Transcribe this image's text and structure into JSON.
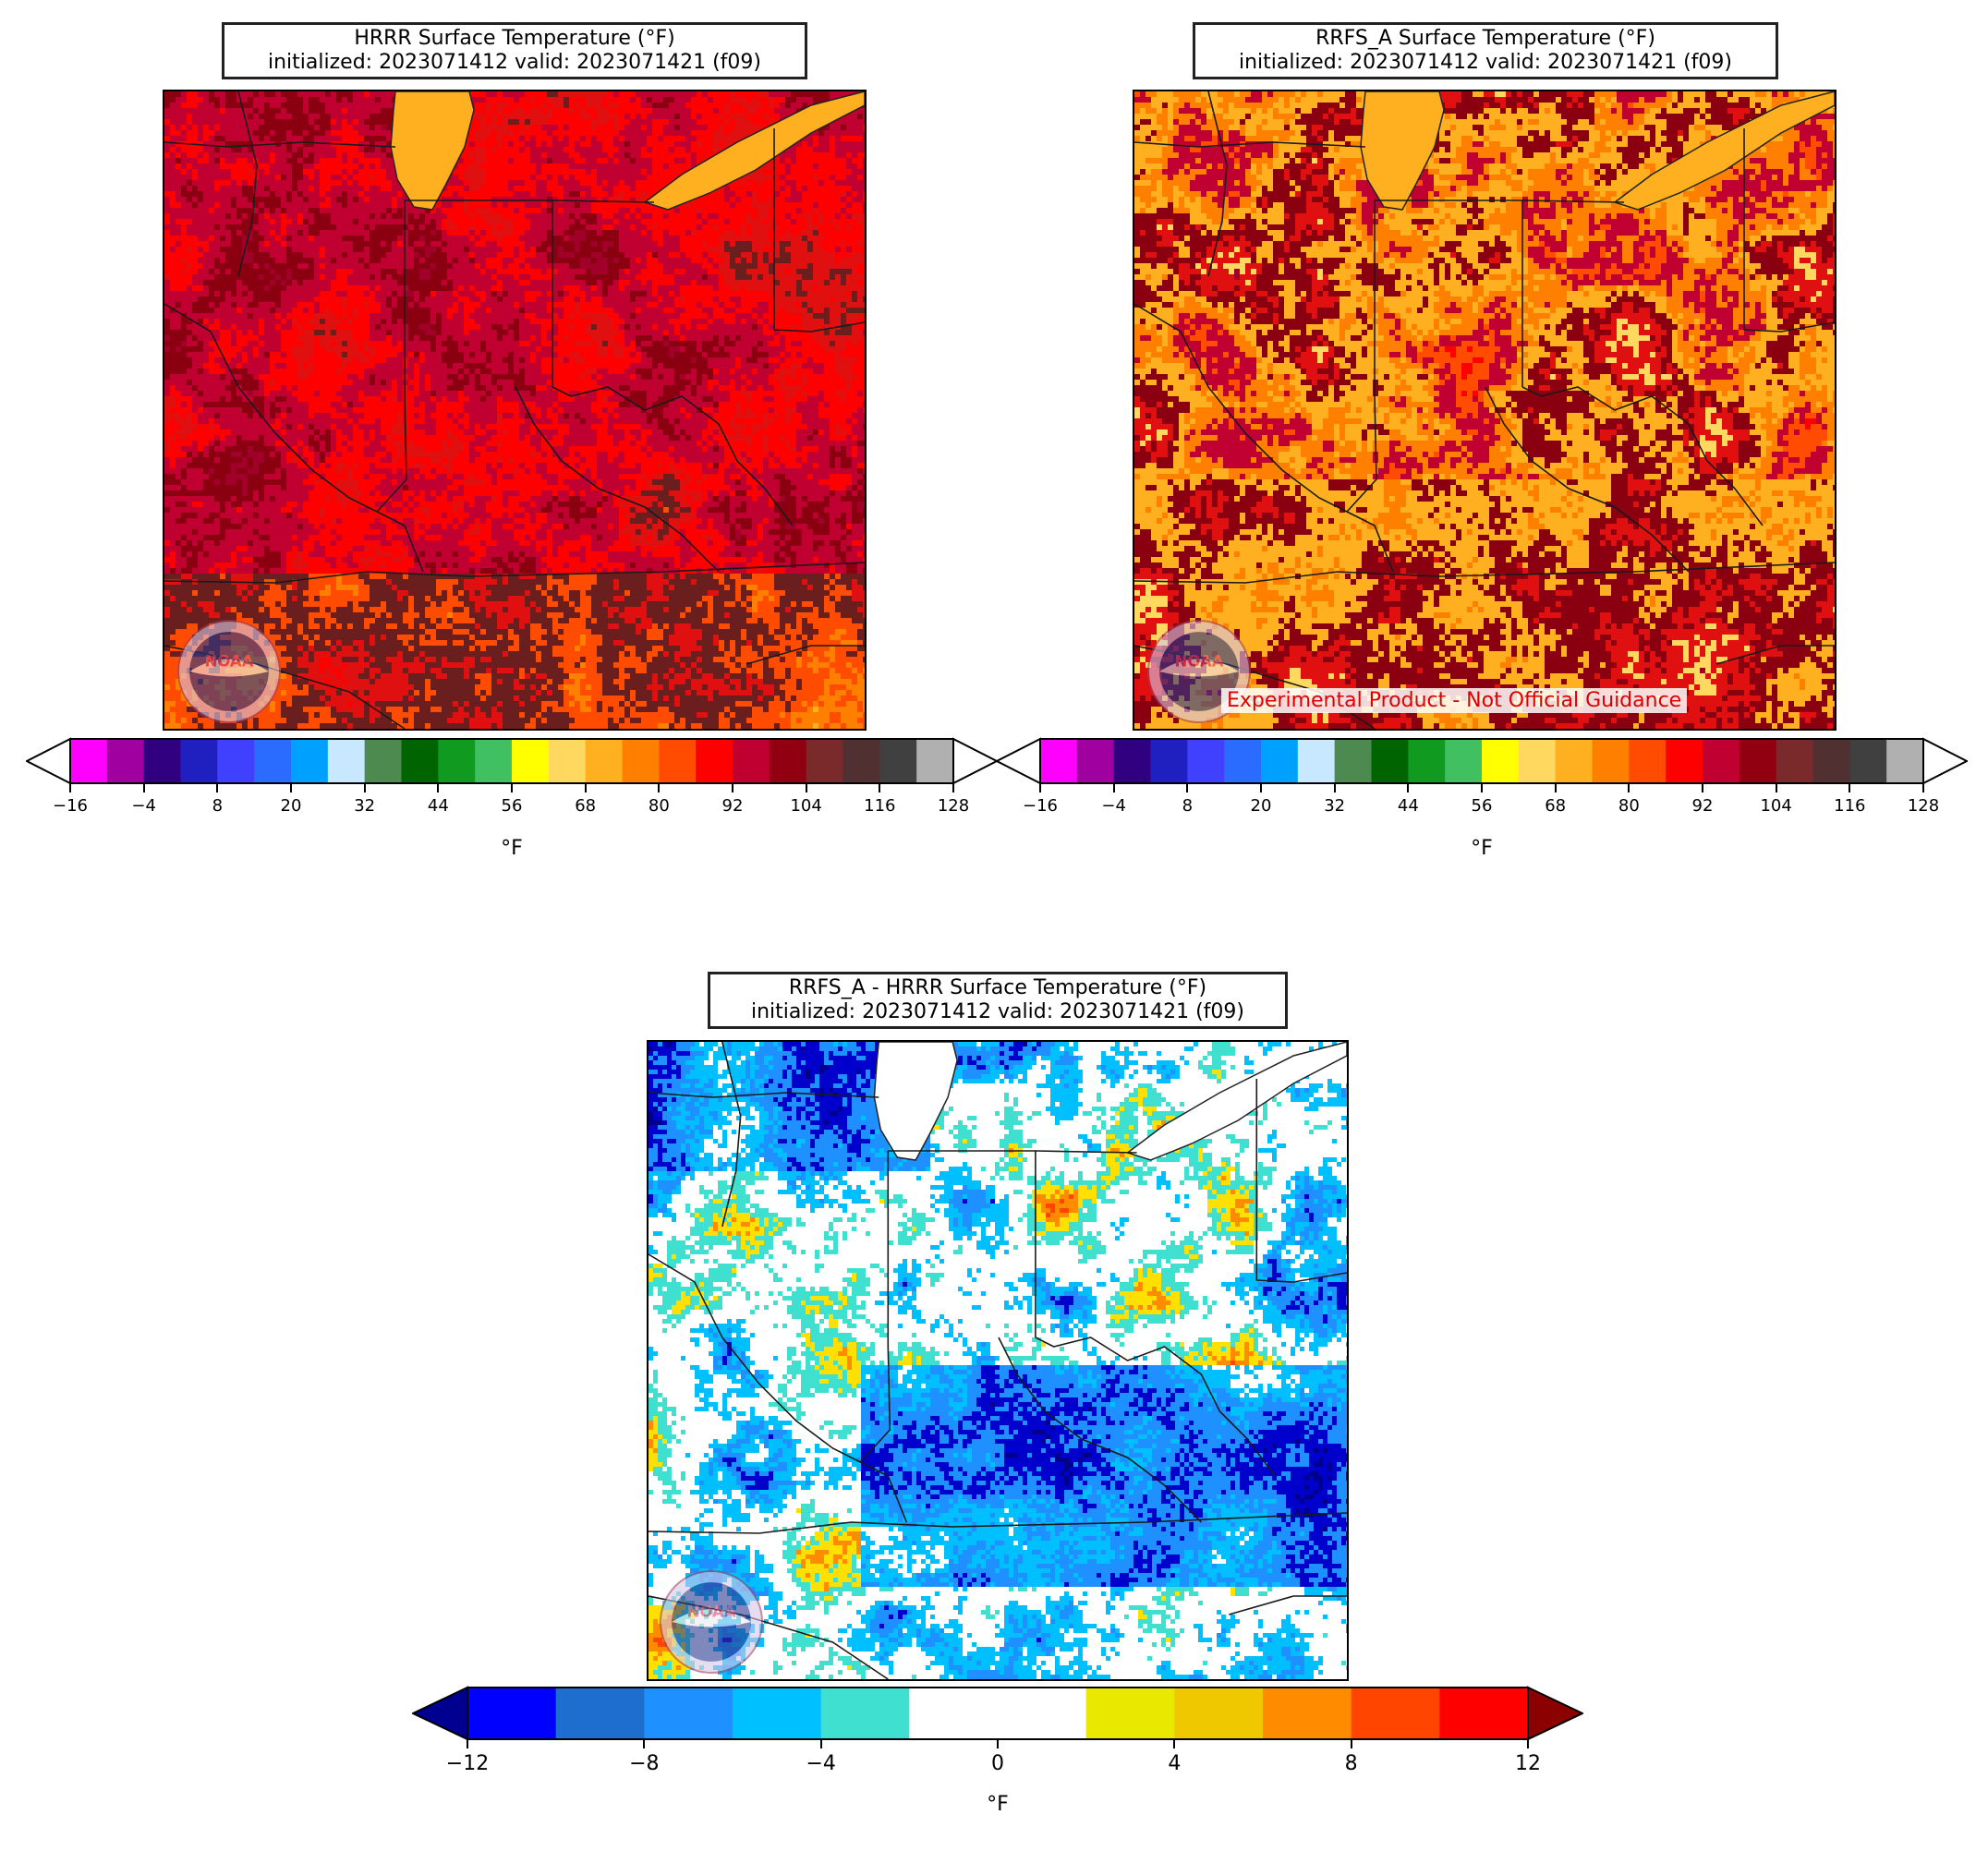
{
  "panels": [
    {
      "id": "hrrr",
      "title_line1": "HRRR Surface Temperature (°F)",
      "title_line2": "initialized: 2023071412 valid: 2023071421 (f09)"
    },
    {
      "id": "rrfs",
      "title_line1": "RRFS_A Surface Temperature (°F)",
      "title_line2": "initialized: 2023071412 valid: 2023071421 (f09)",
      "warning": "Experimental Product - Not Official Guidance"
    },
    {
      "id": "diff",
      "title_line1": "RRFS_A - HRRR Surface Temperature (°F)",
      "title_line2": "initialized: 2023071412 valid: 2023071421 (f09)"
    }
  ],
  "logo_text": "NOAA",
  "temp_colorbar": {
    "unit": "°F",
    "ticks": [
      "−16",
      "−4",
      "8",
      "20",
      "32",
      "44",
      "56",
      "68",
      "80",
      "92",
      "104",
      "116",
      "128"
    ],
    "colors": [
      "#ff00ff",
      "#a000a0",
      "#300080",
      "#2020c0",
      "#4040ff",
      "#2a6cff",
      "#00a0ff",
      "#c8e8ff",
      "#4c8a50",
      "#006400",
      "#109a20",
      "#40c060",
      "#ffff00",
      "#ffd860",
      "#ffb020",
      "#ff8000",
      "#ff4c00",
      "#ff0000",
      "#c00030",
      "#900010",
      "#7a2a2a",
      "#503030",
      "#404040",
      "#b0b0b0"
    ],
    "over_color": "#ffffff",
    "under_color": "#ffffff"
  },
  "diff_colorbar": {
    "unit": "°F",
    "ticks": [
      "−12",
      "−8",
      "−4",
      "0",
      "4",
      "8",
      "12"
    ],
    "colors": [
      "#0000ff",
      "#1e6ed0",
      "#1e90ff",
      "#00c0ff",
      "#40e0d0",
      "#ffffff",
      "#ffffff",
      "#e8e800",
      "#f0c800",
      "#ff8c00",
      "#ff4500",
      "#ff0000"
    ],
    "under_color": "#000090",
    "over_color": "#8b0000"
  },
  "map_palettes": {
    "hrrr": [
      "#a0002a",
      "#8a0010",
      "#c00030",
      "#ff0000",
      "#e01010",
      "#6a1e1e",
      "#ff4c00",
      "#ff8000",
      "#ffb020"
    ],
    "rrfs": [
      "#ff0000",
      "#ff4c00",
      "#c00030",
      "#ff8000",
      "#ffb020",
      "#8a0010",
      "#e01010",
      "#ffd860",
      "#a0002a"
    ],
    "diff": [
      "#00008b",
      "#0000cd",
      "#1e90ff",
      "#00bfff",
      "#ffffff",
      "#ffffff",
      "#40e0d0",
      "#ffe000",
      "#ff8c00",
      "#ff4500"
    ]
  }
}
